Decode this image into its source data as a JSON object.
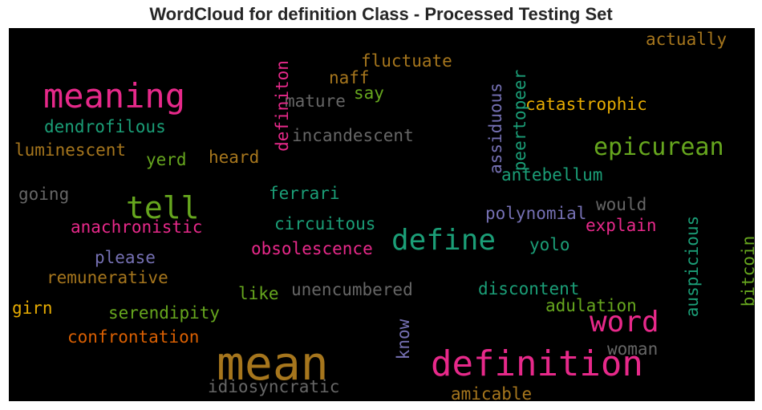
{
  "chart_data": {
    "type": "wordcloud",
    "title": "WordCloud for definition Class - Processed Testing Set",
    "background": "#000000",
    "words": [
      {
        "text": "mean",
        "color": "#a6761d",
        "vertical": false
      },
      {
        "text": "definition",
        "color": "#e7298a",
        "vertical": false
      },
      {
        "text": "meaning",
        "color": "#e7298a",
        "vertical": false
      },
      {
        "text": "tell",
        "color": "#66a61e",
        "vertical": false
      },
      {
        "text": "define",
        "color": "#1b9e77",
        "vertical": false
      },
      {
        "text": "word",
        "color": "#e7298a",
        "vertical": false
      },
      {
        "text": "epicurean",
        "color": "#66a61e",
        "vertical": false
      },
      {
        "text": "catastrophic",
        "color": "#e6ab02",
        "vertical": false
      },
      {
        "text": "dendrofilous",
        "color": "#1b9e77",
        "vertical": false
      },
      {
        "text": "luminescent",
        "color": "#a6761d",
        "vertical": false
      },
      {
        "text": "incandescent",
        "color": "#666666",
        "vertical": false
      },
      {
        "text": "fluctuate",
        "color": "#a6761d",
        "vertical": false
      },
      {
        "text": "actually",
        "color": "#a6761d",
        "vertical": false
      },
      {
        "text": "naff",
        "color": "#a6761d",
        "vertical": false
      },
      {
        "text": "say",
        "color": "#66a61e",
        "vertical": false
      },
      {
        "text": "mature",
        "color": "#666666",
        "vertical": false
      },
      {
        "text": "yerd",
        "color": "#66a61e",
        "vertical": false
      },
      {
        "text": "heard",
        "color": "#a6761d",
        "vertical": false
      },
      {
        "text": "going",
        "color": "#666666",
        "vertical": false
      },
      {
        "text": "ferrari",
        "color": "#1b9e77",
        "vertical": false
      },
      {
        "text": "antebellum",
        "color": "#1b9e77",
        "vertical": false
      },
      {
        "text": "would",
        "color": "#666666",
        "vertical": false
      },
      {
        "text": "polynomial",
        "color": "#7570b3",
        "vertical": false
      },
      {
        "text": "anachronistic",
        "color": "#e7298a",
        "vertical": false
      },
      {
        "text": "circuitous",
        "color": "#1b9e77",
        "vertical": false
      },
      {
        "text": "explain",
        "color": "#e7298a",
        "vertical": false
      },
      {
        "text": "yolo",
        "color": "#1b9e77",
        "vertical": false
      },
      {
        "text": "obsolescence",
        "color": "#e7298a",
        "vertical": false
      },
      {
        "text": "please",
        "color": "#7570b3",
        "vertical": false
      },
      {
        "text": "remunerative",
        "color": "#a6761d",
        "vertical": false
      },
      {
        "text": "like",
        "color": "#66a61e",
        "vertical": false
      },
      {
        "text": "unencumbered",
        "color": "#666666",
        "vertical": false
      },
      {
        "text": "discontent",
        "color": "#1b9e77",
        "vertical": false
      },
      {
        "text": "girn",
        "color": "#e6ab02",
        "vertical": false
      },
      {
        "text": "serendipity",
        "color": "#66a61e",
        "vertical": false
      },
      {
        "text": "adulation",
        "color": "#66a61e",
        "vertical": false
      },
      {
        "text": "confrontation",
        "color": "#d95f02",
        "vertical": false
      },
      {
        "text": "woman",
        "color": "#666666",
        "vertical": false
      },
      {
        "text": "idiosyncratic",
        "color": "#666666",
        "vertical": false
      },
      {
        "text": "amicable",
        "color": "#a6761d",
        "vertical": false
      },
      {
        "text": "definiton",
        "color": "#e7298a",
        "vertical": true
      },
      {
        "text": "peertopeer",
        "color": "#1b9e77",
        "vertical": true
      },
      {
        "text": "assiduous",
        "color": "#7570b3",
        "vertical": true
      },
      {
        "text": "auspicious",
        "color": "#1b9e77",
        "vertical": true
      },
      {
        "text": "bitcoin",
        "color": "#66a61e",
        "vertical": true
      },
      {
        "text": "know",
        "color": "#7570b3",
        "vertical": true
      }
    ]
  }
}
